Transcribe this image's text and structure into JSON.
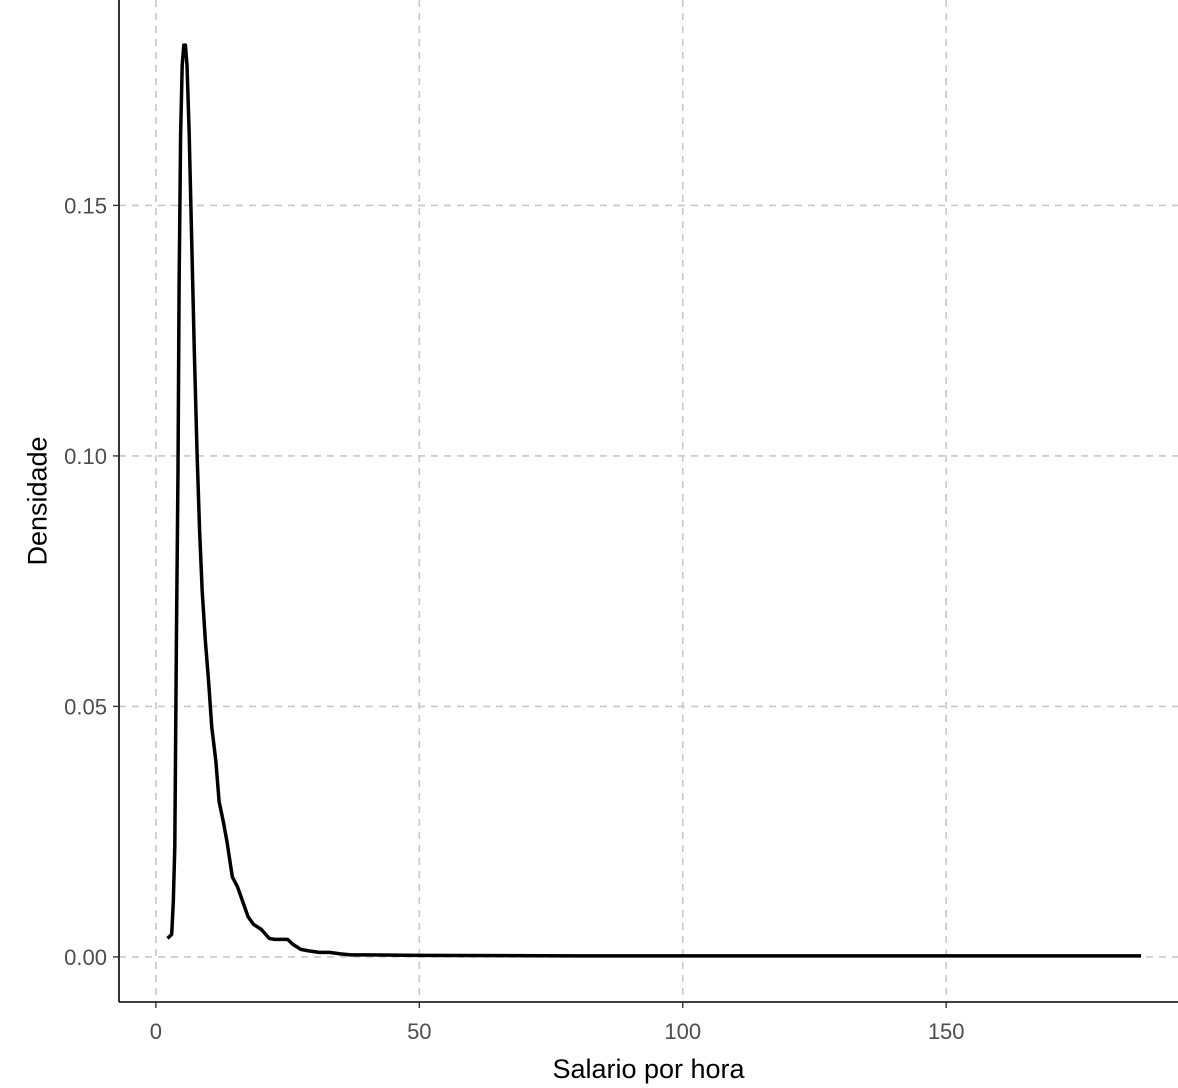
{
  "chart_data": {
    "type": "line",
    "title": "",
    "xlabel": "Salario por hora",
    "ylabel": "Densidade",
    "xlim": [
      -7,
      194
    ],
    "ylim": [
      -0.009,
      0.191
    ],
    "xticks": [
      0,
      50,
      100,
      150
    ],
    "xtick_labels": [
      "0",
      "50",
      "100",
      "150"
    ],
    "yticks": [
      0.0,
      0.05,
      0.1,
      0.15
    ],
    "ytick_labels": [
      "0.00",
      "0.05",
      "0.10",
      "0.15"
    ],
    "grid": true,
    "grid_style": "dashed",
    "series": [
      {
        "color": "#000000",
        "x": [
          2.2,
          3.0,
          3.3,
          3.6,
          3.9,
          4.2,
          4.4,
          4.7,
          5.0,
          5.3,
          5.6,
          5.9,
          6.3,
          6.8,
          7.3,
          7.8,
          8.3,
          8.8,
          9.4,
          10.0,
          10.6,
          11.4,
          12.0,
          12.8,
          13.5,
          14.5,
          15.5,
          16.5,
          17.5,
          18.5,
          20.0,
          21.5,
          22.5,
          25.0,
          26.0,
          27.5,
          29.0,
          31.0,
          33.0,
          35.0,
          37.0,
          40.0,
          50.0,
          80.0,
          120.0,
          160.0,
          187.0
        ],
        "y": [
          0.0037,
          0.0045,
          0.011,
          0.022,
          0.063,
          0.097,
          0.134,
          0.164,
          0.178,
          0.182,
          0.182,
          0.178,
          0.165,
          0.143,
          0.121,
          0.101,
          0.085,
          0.073,
          0.063,
          0.055,
          0.046,
          0.039,
          0.031,
          0.027,
          0.023,
          0.016,
          0.014,
          0.011,
          0.008,
          0.0065,
          0.0055,
          0.0037,
          0.0035,
          0.0035,
          0.0025,
          0.0015,
          0.0012,
          0.0009,
          0.0009,
          0.0006,
          0.0004,
          0.0004,
          0.0003,
          0.0002,
          0.0002,
          0.0002,
          0.0002
        ]
      }
    ]
  }
}
